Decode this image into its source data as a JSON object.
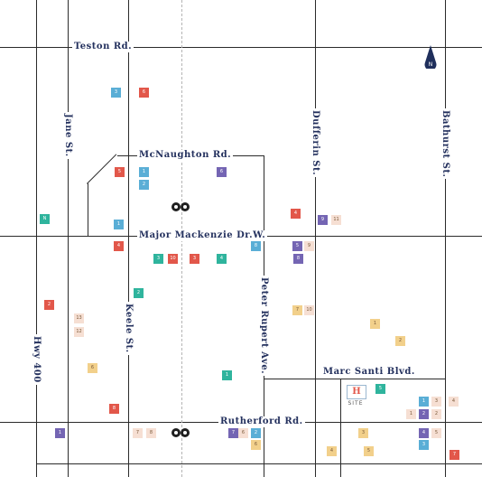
{
  "map": {
    "colors": {
      "red": "#e2574a",
      "blue": "#5aaed6",
      "purple": "#7465b3",
      "teal": "#2fb49d",
      "sand": "#f2d08b",
      "cream": "#f6dfd3",
      "road_label": "#24315e"
    },
    "roads": {
      "teston": "Teston Rd.",
      "mcnaughton": "McNaughton Rd.",
      "major_mackenzie": "Major Mackenzie Dr.W.",
      "marc_santi": "Marc Santi Blvd.",
      "rutherford": "Rutherford Rd.",
      "jane": "Jane St.",
      "keele": "Keele St.",
      "hwy400": "Hwy 400",
      "peter_rupert": "Peter Rupert Ave.",
      "dufferin": "Dufferin St.",
      "bathurst": "Bathurst St."
    },
    "site_label": "SITE",
    "icons": {
      "north_arrow": "north-arrow-icon",
      "north_letter": "N",
      "site": "site-logo-icon",
      "go_station": "go-transit-icon"
    },
    "markers": [
      {
        "color": "blue",
        "label": "3"
      },
      {
        "color": "red",
        "label": "6"
      },
      {
        "color": "teal",
        "label": "N"
      },
      {
        "color": "red",
        "label": "5"
      },
      {
        "color": "blue",
        "label": "1"
      },
      {
        "color": "blue",
        "label": "2"
      },
      {
        "color": "purple",
        "label": "6"
      },
      {
        "color": "blue",
        "label": "1"
      },
      {
        "color": "red",
        "label": "4"
      },
      {
        "color": "red",
        "label": "4"
      },
      {
        "color": "purple",
        "label": "9"
      },
      {
        "color": "cream",
        "label": "11"
      },
      {
        "color": "blue",
        "label": "8"
      },
      {
        "color": "purple",
        "label": "5"
      },
      {
        "color": "cream",
        "label": "9"
      },
      {
        "color": "purple",
        "label": "8"
      },
      {
        "color": "teal",
        "label": "3"
      },
      {
        "color": "red",
        "label": "10"
      },
      {
        "color": "red",
        "label": "3"
      },
      {
        "color": "teal",
        "label": "4"
      },
      {
        "color": "teal",
        "label": "2"
      },
      {
        "color": "red",
        "label": "2"
      },
      {
        "color": "cream",
        "label": "13"
      },
      {
        "color": "cream",
        "label": "12"
      },
      {
        "color": "sand",
        "label": "7"
      },
      {
        "color": "cream",
        "label": "10"
      },
      {
        "color": "sand",
        "label": "1"
      },
      {
        "color": "sand",
        "label": "2"
      },
      {
        "color": "sand",
        "label": "6"
      },
      {
        "color": "teal",
        "label": "1"
      },
      {
        "color": "teal",
        "label": "5"
      },
      {
        "color": "red",
        "label": "8"
      },
      {
        "color": "blue",
        "label": "1"
      },
      {
        "color": "cream",
        "label": "3"
      },
      {
        "color": "cream",
        "label": "4"
      },
      {
        "color": "cream",
        "label": "1"
      },
      {
        "color": "purple",
        "label": "2"
      },
      {
        "color": "cream",
        "label": "2"
      },
      {
        "color": "purple",
        "label": "4"
      },
      {
        "color": "cream",
        "label": "7"
      },
      {
        "color": "cream",
        "label": "8"
      },
      {
        "color": "purple",
        "label": "7"
      },
      {
        "color": "cream",
        "label": "6"
      },
      {
        "color": "blue",
        "label": "2"
      },
      {
        "color": "sand",
        "label": "6"
      },
      {
        "color": "sand",
        "label": "3"
      },
      {
        "color": "blue",
        "label": "3"
      },
      {
        "color": "cream",
        "label": "5"
      },
      {
        "color": "purple",
        "label": "1"
      },
      {
        "color": "sand",
        "label": "4"
      },
      {
        "color": "sand",
        "label": "5"
      },
      {
        "color": "red",
        "label": "7"
      }
    ]
  }
}
